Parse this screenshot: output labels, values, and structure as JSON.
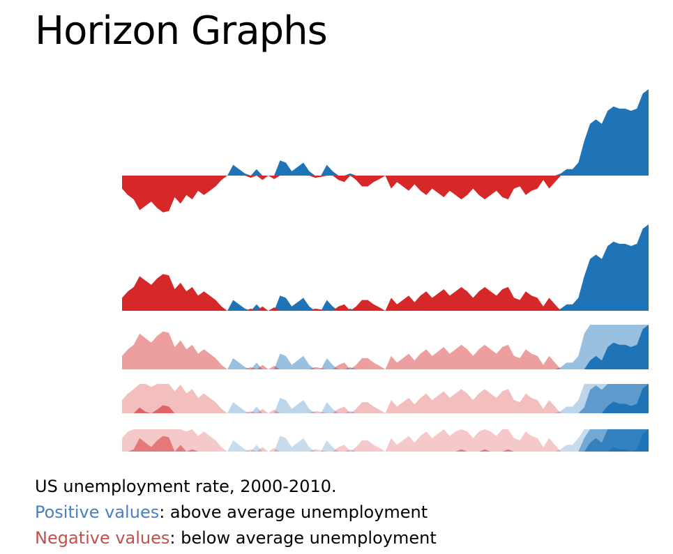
{
  "title": "Horizon Graphs",
  "caption": {
    "line1": "US unemployment rate, 2000-2010.",
    "positive_label": "Positive values",
    "positive_text": ": above average unemployment",
    "negative_label": "Negative values",
    "negative_text": ": below average unemployment"
  },
  "colors": {
    "positive": "#1f74b8",
    "negative": "#d62828",
    "positive_text": "#4a7fc0",
    "negative_text": "#c0504d"
  },
  "chart_data": {
    "type": "area",
    "series": [
      {
        "values": [
          -0.3,
          -0.45,
          -0.55,
          -0.8,
          -0.7,
          -0.6,
          -0.75,
          -0.85,
          -0.82,
          -0.5,
          -0.65,
          -0.45,
          -0.55,
          -0.35,
          -0.45,
          -0.35,
          -0.25,
          -0.1,
          0.0,
          0.25,
          0.15,
          0.05,
          -0.05,
          0.15,
          -0.1,
          0.0,
          -0.08,
          0.35,
          0.3,
          0.1,
          0.2,
          0.3,
          0.1,
          -0.05,
          -0.03,
          0.25,
          0.1,
          -0.1,
          -0.15,
          0.05,
          -0.1,
          -0.25,
          -0.25,
          -0.15,
          -0.08,
          0.0,
          -0.3,
          -0.15,
          -0.25,
          -0.35,
          -0.2,
          -0.35,
          -0.45,
          -0.3,
          -0.4,
          -0.5,
          -0.35,
          -0.45,
          -0.55,
          -0.45,
          -0.3,
          -0.45,
          -0.55,
          -0.45,
          -0.35,
          -0.5,
          -0.55,
          -0.3,
          -0.25,
          -0.45,
          -0.35,
          -0.3,
          -0.1,
          -0.3,
          -0.15,
          0.05,
          0.15,
          0.15,
          0.3,
          0.8,
          1.2,
          1.3,
          1.2,
          1.5,
          1.6,
          1.55,
          1.55,
          1.5,
          1.55,
          1.9,
          2.0
        ]
      }
    ],
    "bands": 3,
    "band_range": 0.7,
    "steps": [
      {
        "step": 1,
        "description": "Area chart"
      },
      {
        "step": 2,
        "description": "Mirrored"
      },
      {
        "step": 3,
        "description": "Offset, 2 bands"
      },
      {
        "step": 4,
        "description": "Offset, 3 bands"
      },
      {
        "step": 5,
        "description": "Offset, 4 bands"
      }
    ]
  }
}
